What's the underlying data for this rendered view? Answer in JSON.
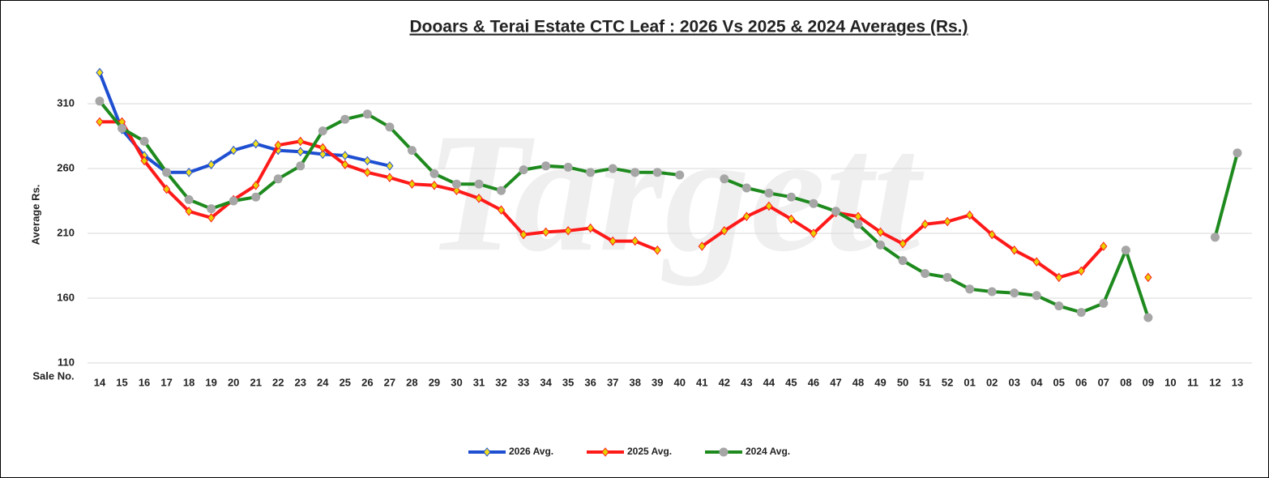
{
  "chart_data": {
    "type": "line",
    "title": "Dooars & Terai Estate CTC Leaf : 2026 Vs 2025 & 2024 Averages (Rs.)",
    "watermark": "Targett",
    "y_label": "Average Rs.",
    "x_label": "Sale No.",
    "categories": [
      "14",
      "15",
      "16",
      "17",
      "18",
      "19",
      "20",
      "21",
      "22",
      "23",
      "24",
      "25",
      "26",
      "27",
      "28",
      "29",
      "30",
      "31",
      "32",
      "33",
      "34",
      "35",
      "36",
      "37",
      "38",
      "39",
      "40",
      "41",
      "42",
      "43",
      "44",
      "45",
      "46",
      "47",
      "48",
      "49",
      "50",
      "51",
      "52",
      "01",
      "02",
      "03",
      "04",
      "05",
      "06",
      "07",
      "08",
      "09",
      "10",
      "11",
      "12",
      "13"
    ],
    "ylim": [
      110,
      340
    ],
    "yticks": [
      110,
      160,
      210,
      260,
      310
    ],
    "grid": true,
    "legend": "bottom",
    "series": [
      {
        "name": "2026 Avg.",
        "color": "#1f4fd1",
        "marker": "diamond",
        "marker_color": "#f0e020",
        "values": [
          334,
          290,
          270,
          257,
          257,
          263,
          274,
          279,
          274,
          273,
          271,
          270,
          266,
          262,
          null,
          null,
          null,
          null,
          null,
          null,
          null,
          null,
          null,
          null,
          null,
          null,
          null,
          null,
          null,
          null,
          null,
          null,
          null,
          null,
          null,
          null,
          null,
          null,
          null,
          null,
          null,
          null,
          null,
          null,
          null,
          null,
          null,
          null,
          null,
          null,
          null,
          null
        ]
      },
      {
        "name": "2025 Avg.",
        "color": "#ff1a1a",
        "marker": "diamond",
        "marker_color": "#e8d000",
        "values": [
          296,
          296,
          266,
          244,
          227,
          222,
          236,
          247,
          278,
          281,
          276,
          263,
          257,
          253,
          248,
          247,
          243,
          237,
          228,
          209,
          211,
          212,
          214,
          204,
          204,
          197,
          null,
          200,
          212,
          223,
          231,
          221,
          210,
          226,
          223,
          211,
          202,
          217,
          219,
          224,
          209,
          197,
          188,
          176,
          181,
          200,
          null,
          176,
          null,
          null,
          null,
          null
        ]
      },
      {
        "name": "2024 Avg.",
        "color": "#1e8a1e",
        "marker": "circle",
        "marker_color": "#a6a6a6",
        "values": [
          312,
          291,
          281,
          257,
          236,
          229,
          235,
          238,
          252,
          262,
          289,
          298,
          302,
          292,
          274,
          256,
          248,
          248,
          243,
          259,
          262,
          261,
          257,
          260,
          257,
          257,
          255,
          null,
          252,
          245,
          241,
          238,
          233,
          227,
          217,
          201,
          189,
          179,
          176,
          167,
          165,
          164,
          162,
          154,
          149,
          156,
          197,
          145,
          null,
          null,
          207,
          272
        ]
      }
    ]
  }
}
